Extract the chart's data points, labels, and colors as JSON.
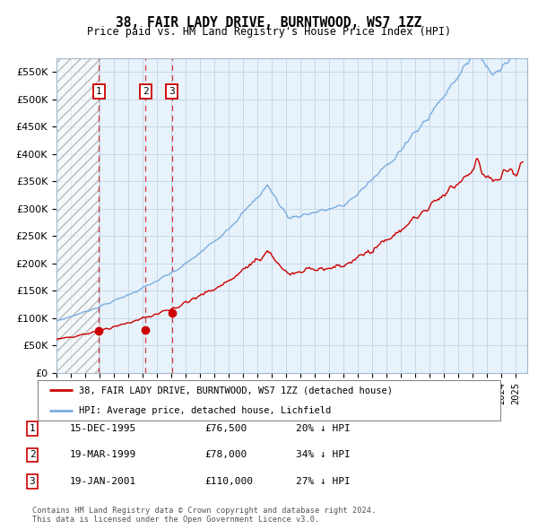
{
  "title": "38, FAIR LADY DRIVE, BURNTWOOD, WS7 1ZZ",
  "subtitle": "Price paid vs. HM Land Registry's House Price Index (HPI)",
  "legend_line1": "38, FAIR LADY DRIVE, BURNTWOOD, WS7 1ZZ (detached house)",
  "legend_line2": "HPI: Average price, detached house, Lichfield",
  "footer1": "Contains HM Land Registry data © Crown copyright and database right 2024.",
  "footer2": "This data is licensed under the Open Government Licence v3.0.",
  "transactions": [
    {
      "num": 1,
      "date": "15-DEC-1995",
      "date_val": 1995.958,
      "price": 76500,
      "hpi_pct": "20% ↓ HPI"
    },
    {
      "num": 2,
      "date": "19-MAR-1999",
      "date_val": 1999.208,
      "price": 78000,
      "hpi_pct": "34% ↓ HPI"
    },
    {
      "num": 3,
      "date": "19-JAN-2001",
      "date_val": 2001.05,
      "price": 110000,
      "hpi_pct": "27% ↓ HPI"
    }
  ],
  "red_color": "#cc0000",
  "blue_color": "#7aade0",
  "grid_color": "#c5d8ec",
  "plot_bg": "#e8f2fa",
  "ylim": [
    0,
    575000
  ],
  "yticks": [
    0,
    50000,
    100000,
    150000,
    200000,
    250000,
    300000,
    350000,
    400000,
    450000,
    500000,
    550000
  ],
  "xlim_start": 1993.0,
  "xlim_end": 2025.8
}
